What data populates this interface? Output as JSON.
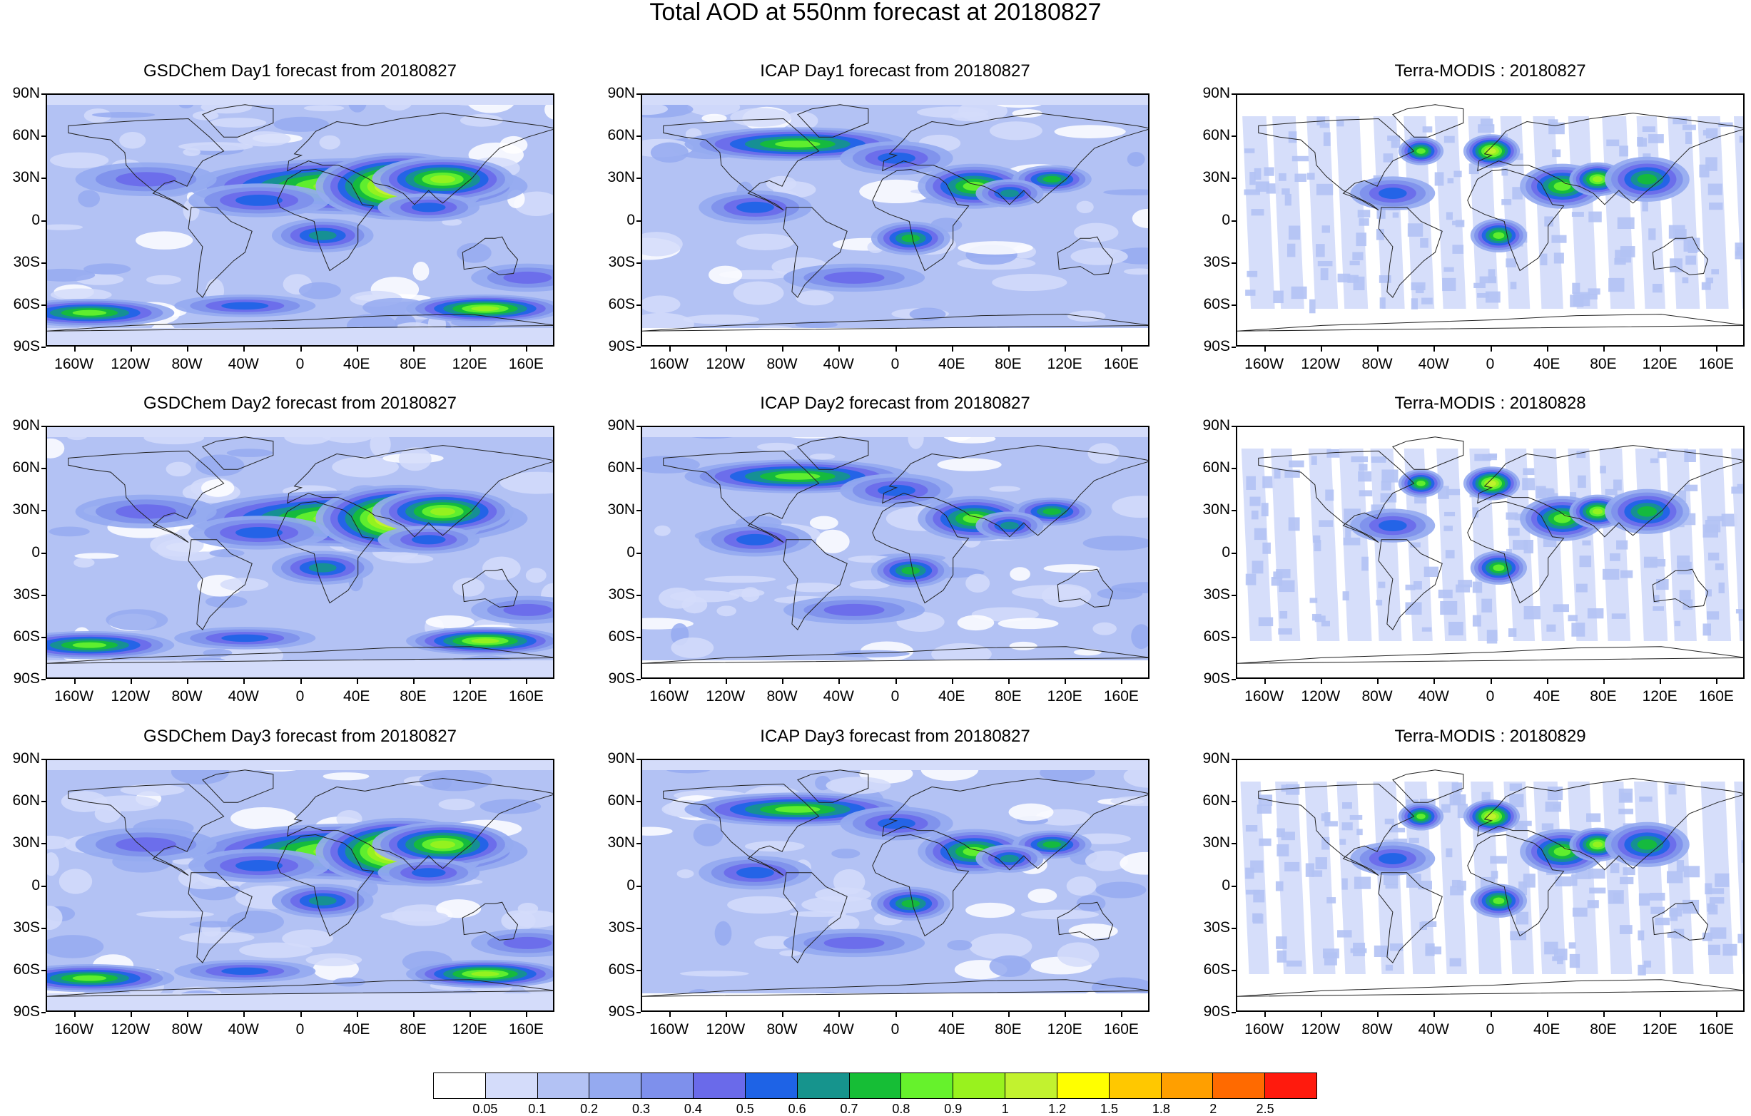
{
  "title": "Total AOD at 550nm forecast at 20180827",
  "panels": [
    {
      "title": "GSDChem Day1 forecast from 20180827",
      "kind": "gsd"
    },
    {
      "title": "ICAP Day1 forecast from 20180827",
      "kind": "icap"
    },
    {
      "title": "Terra-MODIS : 20180827",
      "kind": "modis"
    },
    {
      "title": "GSDChem Day2 forecast from 20180827",
      "kind": "gsd"
    },
    {
      "title": "ICAP Day2 forecast from 20180827",
      "kind": "icap"
    },
    {
      "title": "Terra-MODIS : 20180828",
      "kind": "modis"
    },
    {
      "title": "GSDChem Day3 forecast from 20180827",
      "kind": "gsd"
    },
    {
      "title": "ICAP Day3 forecast from 20180827",
      "kind": "icap"
    },
    {
      "title": "Terra-MODIS : 20180829",
      "kind": "modis"
    }
  ],
  "axes": {
    "lat_labels": [
      "90N",
      "60N",
      "30N",
      "0",
      "30S",
      "60S",
      "90S"
    ],
    "lon_labels": [
      "160W",
      "120W",
      "80W",
      "40W",
      "0",
      "40E",
      "80E",
      "120E",
      "160E"
    ],
    "lon_values": [
      -160,
      -120,
      -80,
      -40,
      0,
      40,
      80,
      120,
      160
    ],
    "lat_values": [
      90,
      60,
      30,
      0,
      -30,
      -60,
      -90
    ]
  },
  "colorbar": {
    "colors": [
      "#ffffff",
      "#d4dcfa",
      "#b3c2f4",
      "#95aaf0",
      "#7e90ec",
      "#6a6aea",
      "#1e63e6",
      "#16948d",
      "#16be36",
      "#66f22c",
      "#99f21e",
      "#c2f22f",
      "#ffff00",
      "#ffc800",
      "#ff9f00",
      "#ff6a00",
      "#ff1a0d"
    ],
    "labels": [
      "0.05",
      "0.1",
      "0.2",
      "0.3",
      "0.4",
      "0.5",
      "0.6",
      "0.7",
      "0.8",
      "0.9",
      "1",
      "1.2",
      "1.5",
      "1.8",
      "2",
      "2.5"
    ]
  }
}
